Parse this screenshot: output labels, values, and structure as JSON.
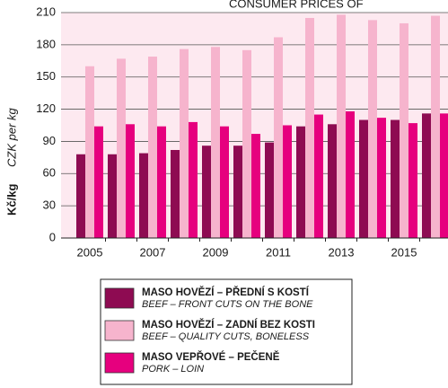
{
  "chart_data": {
    "type": "bar",
    "title": "CONSUMER PRICES OF",
    "y_label": "Kč/kg",
    "y_label_en": "CZK per kg",
    "categories": [
      "2005",
      null,
      "2007",
      null,
      "2009",
      null,
      "2011",
      null,
      "2013",
      null,
      "2015",
      null
    ],
    "series": [
      {
        "name": "MASO HOVĚZÍ – PŘEDNÍ S KOSTÍ",
        "name_en": "BEEF – FRONT CUTS ON THE BONE",
        "color": "#8e0b52",
        "values": [
          78,
          78,
          79,
          82,
          86,
          86,
          89,
          104,
          106,
          110,
          110,
          116
        ]
      },
      {
        "name": "MASO HOVĚZÍ – ZADNÍ BEZ KOSTI",
        "name_en": "BEEF – QUALITY CUTS, BONELESS",
        "color": "#f6b4cd",
        "values": [
          160,
          167,
          169,
          176,
          178,
          175,
          187,
          205,
          208,
          203,
          200,
          207
        ]
      },
      {
        "name": "MASO VEPŘOVÉ – PEČENĚ",
        "name_en": "PORK – LOIN",
        "color": "#e6007e",
        "values": [
          104,
          106,
          104,
          108,
          104,
          97,
          105,
          115,
          118,
          112,
          107,
          116
        ]
      }
    ],
    "ylim": [
      0,
      210
    ],
    "yticks": [
      0,
      30,
      60,
      90,
      120,
      150,
      180,
      210
    ],
    "grid": true
  }
}
